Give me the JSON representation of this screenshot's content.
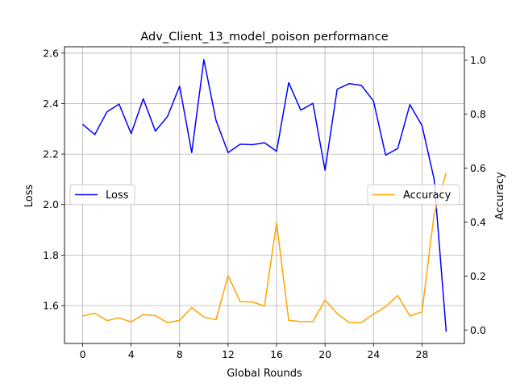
{
  "chart_data": {
    "type": "line",
    "title": "Adv_Client_13_model_poison performance",
    "xlabel": "Global Rounds",
    "ylabel_left": "Loss",
    "ylabel_right": "Accuracy",
    "x": [
      0,
      1,
      2,
      3,
      4,
      5,
      6,
      7,
      8,
      9,
      10,
      11,
      12,
      13,
      14,
      15,
      16,
      17,
      18,
      19,
      20,
      21,
      22,
      23,
      24,
      25,
      26,
      27,
      28,
      29,
      30
    ],
    "xticks": [
      0,
      4,
      8,
      12,
      16,
      20,
      24,
      28
    ],
    "yticks_left": [
      1.6,
      1.8,
      2.0,
      2.2,
      2.4,
      2.6
    ],
    "yticks_right": [
      0.0,
      0.2,
      0.4,
      0.6,
      0.8,
      1.0
    ],
    "xlim": [
      -1.5,
      31.5
    ],
    "ylim_left": [
      1.45,
      2.625
    ],
    "ylim_right": [
      -0.05,
      1.05
    ],
    "grid": true,
    "series": [
      {
        "name": "Loss",
        "axis": "left",
        "color": "#0000ff",
        "legend_position": "center-left",
        "values": [
          2.318,
          2.277,
          2.367,
          2.398,
          2.281,
          2.419,
          2.291,
          2.349,
          2.469,
          2.206,
          2.574,
          2.334,
          2.206,
          2.239,
          2.237,
          2.245,
          2.211,
          2.483,
          2.374,
          2.401,
          2.136,
          2.457,
          2.479,
          2.472,
          2.41,
          2.196,
          2.222,
          2.396,
          2.313,
          2.101,
          1.496
        ]
      },
      {
        "name": "Accuracy",
        "axis": "right",
        "color": "#ffa500",
        "legend_position": "center-right",
        "values": [
          0.052,
          0.062,
          0.035,
          0.045,
          0.03,
          0.057,
          0.053,
          0.027,
          0.036,
          0.083,
          0.048,
          0.038,
          0.202,
          0.105,
          0.104,
          0.089,
          0.398,
          0.036,
          0.031,
          0.031,
          0.111,
          0.061,
          0.027,
          0.027,
          0.059,
          0.086,
          0.128,
          0.052,
          0.067,
          0.43,
          0.583
        ]
      }
    ]
  }
}
